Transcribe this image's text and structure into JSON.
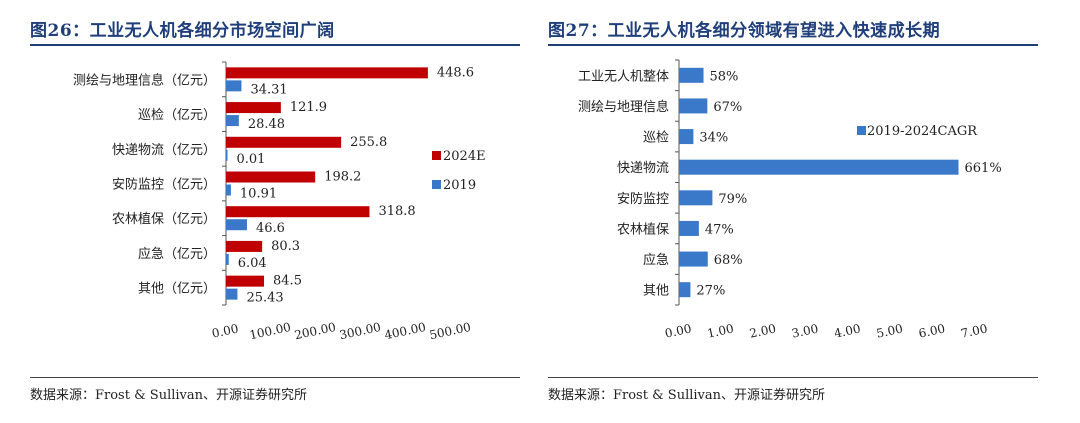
{
  "left": {
    "title": "图26：工业无人机各细分市场空间广阔",
    "source": "数据来源：Frost & Sullivan、开源证券研究所",
    "chart_data": {
      "type": "bar",
      "orientation": "horizontal",
      "categories": [
        "测绘与地理信息（亿元）",
        "巡检（亿元）",
        "快递物流（亿元）",
        "安防监控（亿元）",
        "农林植保（亿元）",
        "应急（亿元）",
        "其他（亿元）"
      ],
      "series": [
        {
          "name": "2024E",
          "color": "#c00000",
          "values": [
            448.6,
            121.9,
            255.8,
            198.2,
            318.8,
            80.3,
            84.5
          ],
          "labels": [
            "448.6",
            "121.9",
            "255.8",
            "198.2",
            "318.8",
            "80.3",
            "84.5"
          ]
        },
        {
          "name": "2019",
          "color": "#3a78c9",
          "values": [
            34.31,
            28.48,
            0.01,
            10.91,
            46.6,
            6.04,
            25.43
          ],
          "labels": [
            "34.31",
            "28.48",
            "0.01",
            "10.91",
            "46.6",
            "6.04",
            "25.43"
          ]
        }
      ],
      "xlim": [
        0,
        500
      ],
      "xticks": [
        "0.00",
        "100.00",
        "200.00",
        "300.00",
        "400.00",
        "500.00"
      ],
      "legend_position": "right"
    }
  },
  "right": {
    "title": "图27：工业无人机各细分领域有望进入快速成长期",
    "source": "数据来源：Frost & Sullivan、开源证券研究所",
    "chart_data": {
      "type": "bar",
      "orientation": "horizontal",
      "categories": [
        "工业无人机整体",
        "测绘与地理信息",
        "巡检",
        "快递物流",
        "安防监控",
        "农林植保",
        "应急",
        "其他"
      ],
      "series": [
        {
          "name": "2019-2024CAGR",
          "color": "#3a78c9",
          "values": [
            0.58,
            0.67,
            0.34,
            6.61,
            0.79,
            0.47,
            0.68,
            0.27
          ],
          "labels": [
            "58%",
            "67%",
            "34%",
            "661%",
            "79%",
            "47%",
            "68%",
            "27%"
          ]
        }
      ],
      "xlim": [
        0,
        7
      ],
      "xticks": [
        "0.00",
        "1.00",
        "2.00",
        "3.00",
        "4.00",
        "5.00",
        "6.00",
        "7.00"
      ],
      "legend_position": "top-right"
    }
  }
}
